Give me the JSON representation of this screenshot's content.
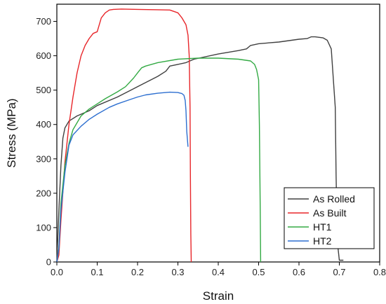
{
  "chart_data": {
    "type": "line",
    "title": "",
    "xlabel": "Strain",
    "ylabel": "Stress (MPa)",
    "xlim": [
      0.0,
      0.8
    ],
    "ylim": [
      0,
      750
    ],
    "xticks": [
      0.0,
      0.1,
      0.2,
      0.3,
      0.4,
      0.5,
      0.6,
      0.7,
      0.8
    ],
    "xtick_labels": [
      "0.0",
      "0.1",
      "0.2",
      "0.3",
      "0.4",
      "0.5",
      "0.6",
      "0.7",
      "0.8"
    ],
    "yticks": [
      0,
      100,
      200,
      300,
      400,
      500,
      600,
      700
    ],
    "ytick_labels": [
      "0",
      "100",
      "200",
      "300",
      "400",
      "500",
      "600",
      "700"
    ],
    "grid": false,
    "legend_position": "bottom-right",
    "series": [
      {
        "name": "As Rolled",
        "color": "#404040",
        "x": [
          0.0,
          0.005,
          0.01,
          0.015,
          0.02,
          0.03,
          0.05,
          0.08,
          0.1,
          0.15,
          0.2,
          0.25,
          0.27,
          0.28,
          0.3,
          0.32,
          0.34,
          0.4,
          0.45,
          0.47,
          0.48,
          0.5,
          0.55,
          0.6,
          0.62,
          0.63,
          0.64,
          0.66,
          0.67,
          0.68,
          0.69,
          0.692,
          0.695,
          0.7,
          0.71
        ],
        "y": [
          0,
          150,
          280,
          360,
          390,
          410,
          425,
          440,
          455,
          480,
          510,
          540,
          555,
          570,
          575,
          580,
          590,
          605,
          615,
          620,
          630,
          635,
          640,
          648,
          650,
          655,
          655,
          652,
          645,
          620,
          450,
          250,
          60,
          5,
          5
        ]
      },
      {
        "name": "As Built",
        "color": "#e8262a",
        "x": [
          0.0,
          0.005,
          0.01,
          0.02,
          0.03,
          0.04,
          0.05,
          0.06,
          0.07,
          0.08,
          0.09,
          0.1,
          0.105,
          0.11,
          0.12,
          0.13,
          0.14,
          0.16,
          0.2,
          0.25,
          0.28,
          0.3,
          0.31,
          0.32,
          0.325,
          0.328,
          0.33,
          0.331,
          0.332,
          0.333
        ],
        "y": [
          0,
          20,
          120,
          290,
          400,
          480,
          550,
          600,
          630,
          650,
          665,
          670,
          690,
          710,
          725,
          733,
          735,
          736,
          735,
          734,
          733,
          725,
          710,
          690,
          660,
          600,
          450,
          250,
          80,
          0
        ]
      },
      {
        "name": "HT1",
        "color": "#33aa44",
        "x": [
          0.0,
          0.005,
          0.01,
          0.02,
          0.03,
          0.04,
          0.06,
          0.08,
          0.1,
          0.12,
          0.15,
          0.17,
          0.19,
          0.2,
          0.21,
          0.22,
          0.25,
          0.3,
          0.35,
          0.4,
          0.45,
          0.48,
          0.49,
          0.495,
          0.5,
          0.502,
          0.504,
          0.505
        ],
        "y": [
          0,
          40,
          170,
          280,
          345,
          385,
          425,
          445,
          460,
          475,
          495,
          510,
          535,
          550,
          565,
          570,
          580,
          590,
          593,
          593,
          590,
          585,
          575,
          560,
          530,
          400,
          150,
          0
        ]
      },
      {
        "name": "HT2",
        "color": "#2d6fd0",
        "x": [
          0.0,
          0.005,
          0.01,
          0.02,
          0.03,
          0.04,
          0.06,
          0.08,
          0.1,
          0.13,
          0.15,
          0.18,
          0.2,
          0.22,
          0.25,
          0.28,
          0.3,
          0.31,
          0.315,
          0.318,
          0.32,
          0.322,
          0.325
        ],
        "y": [
          0,
          40,
          150,
          260,
          340,
          370,
          395,
          415,
          430,
          450,
          460,
          472,
          480,
          486,
          491,
          494,
          493,
          490,
          485,
          470,
          440,
          380,
          335
        ]
      }
    ]
  }
}
